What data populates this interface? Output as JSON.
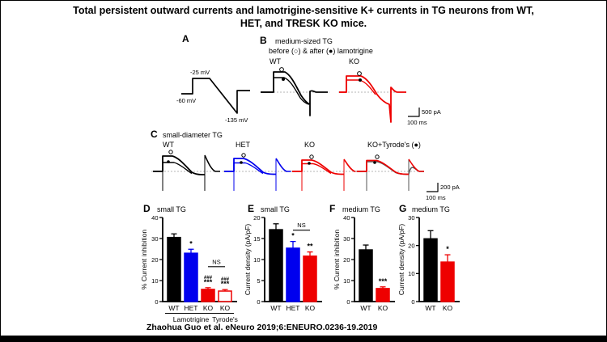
{
  "page": {
    "title_line1": "Total persistent outward currents and lamotrigine-sensitive K+ currents in TG neurons from WT,",
    "title_line2": "HET, and TRESK KO mice.",
    "citation": "Zhaohua Guo et al. eNeuro 2019;6:ENEURO.0236-19.2019"
  },
  "panels": {
    "a": {
      "label": "A",
      "v_step": "-25 mV",
      "v_hold": "-60 mV",
      "v_ramp_end": "-135 mV"
    },
    "b": {
      "label": "B",
      "subtitle": "medium-sized TG",
      "legend": "before (○) & after (●) lamotrigine",
      "wt_label": "WT",
      "ko_label": "KO",
      "scale_v": "500 pA",
      "scale_h": "100 ms"
    },
    "c": {
      "label": "C",
      "subtitle": "small-diameter TG",
      "wt_label": "WT",
      "het_label": "HET",
      "ko_label": "KO",
      "ko_tyrode_label": "KO+Tyrode's (●)",
      "scale_v": "200 pA",
      "scale_h": "100 ms"
    }
  },
  "colors": {
    "wt": "#000000",
    "het": "#0000ee",
    "ko": "#ee0000",
    "tyrode_overlay": "#555555",
    "baseline_dash": "#b5b5b5"
  },
  "chart_data": [
    {
      "type": "bar",
      "panel_label": "D",
      "title": "small TG",
      "ylabel": "% Current inhibition",
      "ylim": [
        0,
        40
      ],
      "yticks": [
        0,
        10,
        20,
        30,
        40
      ],
      "categories": [
        "WT",
        "HET",
        "KO",
        "KO"
      ],
      "values": [
        30.5,
        23.0,
        5.8,
        5.0
      ],
      "errors": [
        1.7,
        1.9,
        0.8,
        0.7
      ],
      "bar_colors": [
        "#000000",
        "#0000ee",
        "#ee0000",
        "#ffffff"
      ],
      "bar_edge_colors": [
        "#000000",
        "#0000ee",
        "#ee0000",
        "#ee0000"
      ],
      "annotations": [
        "",
        "*",
        "###\n***",
        "###\n***"
      ],
      "ns_bracket": [
        2,
        3
      ],
      "ns_label": "NS",
      "group_labels": [
        {
          "label": "Lamotrigine",
          "from": 0,
          "to": 2
        },
        {
          "label": "Tyrode's",
          "from": 3,
          "to": 3
        }
      ]
    },
    {
      "type": "bar",
      "panel_label": "E",
      "title": "small TG",
      "ylabel": "Current density (pA/pF)",
      "ylim": [
        0,
        20
      ],
      "yticks": [
        0,
        5,
        10,
        15,
        20
      ],
      "categories": [
        "WT",
        "HET",
        "KO"
      ],
      "values": [
        17.1,
        12.7,
        10.8
      ],
      "errors": [
        1.4,
        1.6,
        1.0
      ],
      "bar_colors": [
        "#000000",
        "#0000ee",
        "#ee0000"
      ],
      "annotations": [
        "",
        "*",
        "**"
      ],
      "ns_bracket": [
        1,
        2
      ],
      "ns_label": "NS"
    },
    {
      "type": "bar",
      "panel_label": "F",
      "title": "medium TG",
      "ylabel": "% Current inhibition",
      "ylim": [
        0,
        40
      ],
      "yticks": [
        0,
        10,
        20,
        30,
        40
      ],
      "categories": [
        "WT",
        "KO"
      ],
      "values": [
        24.6,
        6.2
      ],
      "errors": [
        2.3,
        0.8
      ],
      "bar_colors": [
        "#000000",
        "#ee0000"
      ],
      "annotations": [
        "",
        "***"
      ]
    },
    {
      "type": "bar",
      "panel_label": "G",
      "title": "medium TG",
      "ylabel": "Current density (pA/pF)",
      "ylim": [
        0,
        30
      ],
      "yticks": [
        0,
        10,
        20,
        30
      ],
      "categories": [
        "WT",
        "KO"
      ],
      "values": [
        22.4,
        14.1
      ],
      "errors": [
        2.9,
        2.6
      ],
      "bar_colors": [
        "#000000",
        "#ee0000"
      ],
      "annotations": [
        "",
        "*"
      ]
    }
  ]
}
